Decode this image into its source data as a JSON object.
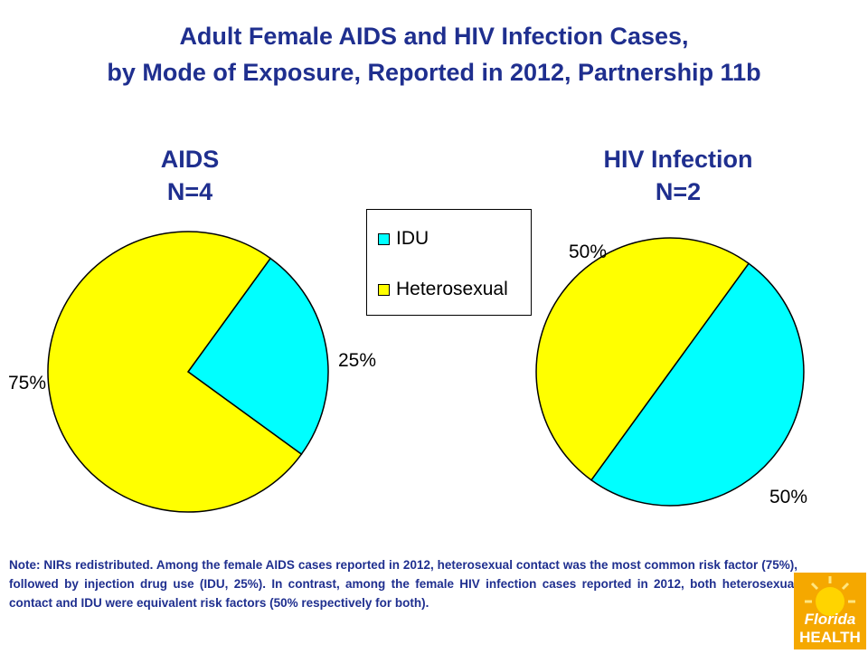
{
  "title_line1": "Adult Female AIDS and HIV Infection Cases,",
  "title_line2": "by Mode of Exposure, Reported in 2012, Partnership 11b",
  "legend": {
    "items": [
      {
        "label": "IDU",
        "color": "#00ffff"
      },
      {
        "label": "Heterosexual",
        "color": "#ffff00"
      }
    ]
  },
  "chart_data": [
    {
      "type": "pie",
      "title": "AIDS",
      "subtitle": "N=4",
      "categories": [
        "IDU",
        "Heterosexual"
      ],
      "values": [
        25,
        75
      ],
      "labels": [
        "25%",
        "75%"
      ],
      "colors": [
        "#00ffff",
        "#ffff00"
      ]
    },
    {
      "type": "pie",
      "title": "HIV Infection",
      "subtitle": "N=2",
      "categories": [
        "IDU",
        "Heterosexual"
      ],
      "values": [
        50,
        50
      ],
      "labels": [
        "50%",
        "50%"
      ],
      "colors": [
        "#00ffff",
        "#ffff00"
      ]
    }
  ],
  "note": "Note:  NIRs redistributed. Among the female AIDS cases reported in 2012, heterosexual contact was the most common risk factor (75%), followed by injection drug use (IDU, 25%).  In contrast, among the female HIV infection cases reported in 2012, both heterosexual contact and IDU were equivalent risk factors (50% respectively for both).",
  "logo": {
    "line1": "Florida",
    "line2": "HEALTH"
  }
}
